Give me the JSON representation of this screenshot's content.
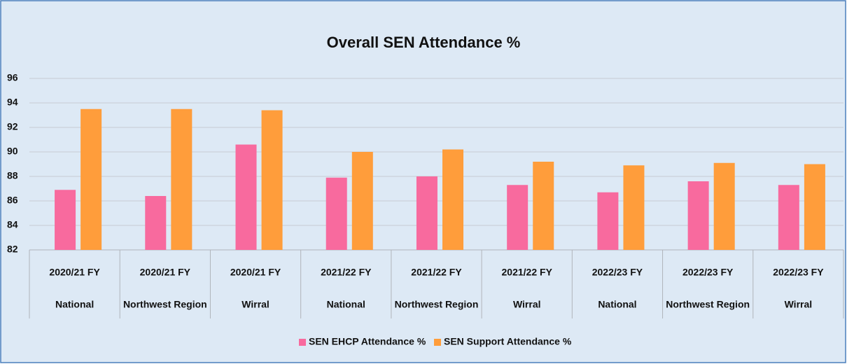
{
  "chart_data": {
    "type": "bar",
    "title": "Overall SEN Attendance %",
    "categories": [
      "2020/21 FY",
      "2020/21 FY",
      "2020/21 FY",
      "2021/22 FY",
      "2021/22 FY",
      "2021/22 FY",
      "2022/23 FY",
      "2022/23 FY",
      "2022/23 FY"
    ],
    "subcategories": [
      "National",
      "Northwest Region",
      "Wirral",
      "National",
      "Northwest Region",
      "Wirral",
      "National",
      "Northwest Region",
      "Wirral"
    ],
    "series": [
      {
        "name": "SEN EHCP Attendance %",
        "color": "#f86a9e",
        "values": [
          86.9,
          86.4,
          90.6,
          87.9,
          88.0,
          87.3,
          86.7,
          87.6,
          87.3
        ]
      },
      {
        "name": "SEN Support Attendance %",
        "color": "#ff9d3b",
        "values": [
          93.5,
          93.5,
          93.4,
          90.0,
          90.2,
          89.2,
          88.9,
          89.1,
          89.0
        ]
      }
    ],
    "ylim": [
      82,
      96
    ],
    "yticks": [
      82,
      84,
      86,
      88,
      90,
      92,
      94,
      96
    ],
    "grid": true,
    "legend": "bottom"
  }
}
